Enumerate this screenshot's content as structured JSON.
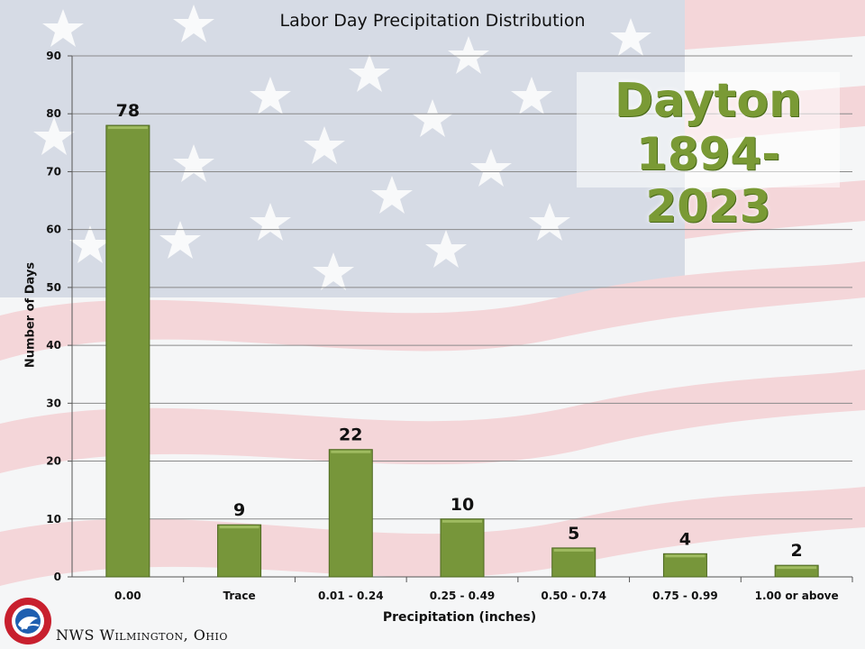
{
  "chart_data": {
    "type": "bar",
    "title": "Labor Day Precipitation Distribution",
    "xlabel": "Precipitation (inches)",
    "ylabel": "Number of Days",
    "categories": [
      "0.00",
      "Trace",
      "0.01 - 0.24",
      "0.25 - 0.49",
      "0.50 - 0.74",
      "0.75 - 0.99",
      "1.00 or above"
    ],
    "values": [
      78,
      9,
      22,
      10,
      5,
      4,
      2
    ],
    "ylim": [
      0,
      90
    ],
    "yticks": [
      0,
      10,
      20,
      30,
      40,
      50,
      60,
      70,
      80,
      90
    ],
    "grid": true,
    "bar_color": "#77963a",
    "data_labels": true
  },
  "overlay": {
    "city": "Dayton",
    "years": "1894-2023"
  },
  "footer": {
    "credit": "NWS Wilmington, Ohio"
  },
  "logo": {
    "icon": "nws-logo-icon"
  }
}
